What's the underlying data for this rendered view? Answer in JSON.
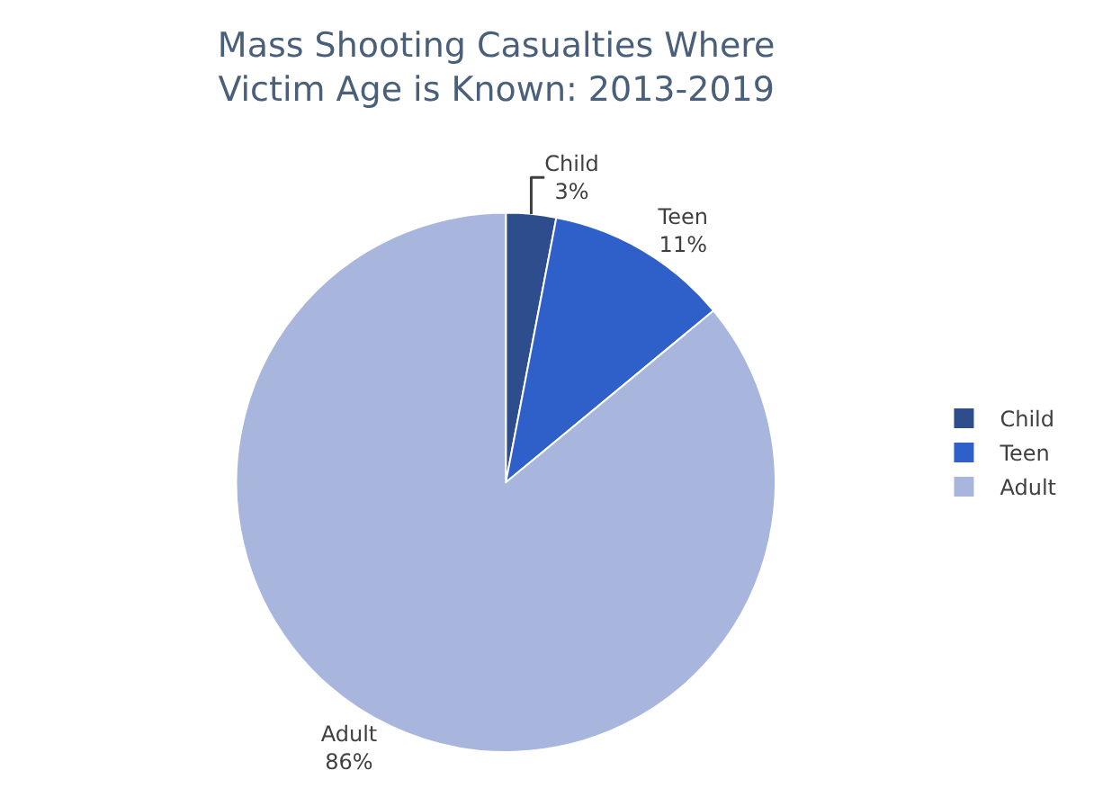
{
  "chart_data": {
    "type": "pie",
    "title": "Mass Shooting Casualties Where\nVictim Age is Known: 2013-2019",
    "categories": [
      "Child",
      "Teen",
      "Adult"
    ],
    "values": [
      3,
      11,
      86
    ],
    "colors": [
      "#2e4d8c",
      "#2f5fc9",
      "#a8b6de"
    ],
    "value_labels": [
      "3%",
      "11%",
      "86%"
    ],
    "legend": "right"
  }
}
